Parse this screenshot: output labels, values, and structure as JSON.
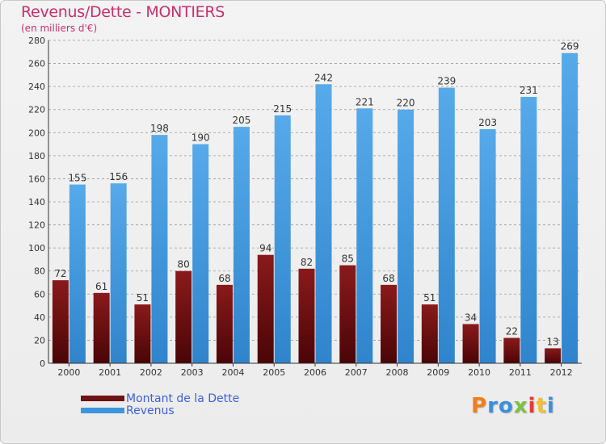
{
  "title": "Revenus/Dette - MONTIERS",
  "subtitle": "(en milliers d'€)",
  "logo": {
    "text": "Proxiti",
    "letters": [
      {
        "ch": "P",
        "color": "#f07f1a"
      },
      {
        "ch": "r",
        "color": "#3c8fdc"
      },
      {
        "ch": "o",
        "color": "#3c8fdc"
      },
      {
        "ch": "x",
        "color": "#7cc242"
      },
      {
        "ch": "i",
        "color": "#e23b3b"
      },
      {
        "ch": "t",
        "color": "#f2c12e"
      },
      {
        "ch": "i",
        "color": "#3c8fdc"
      }
    ]
  },
  "colors": {
    "dette": "#6e1213",
    "revenus": "#3d96dc",
    "axis": "#333333",
    "grid": "#9a9a9a"
  },
  "chart_data": {
    "type": "bar",
    "categories": [
      "2000",
      "2001",
      "2002",
      "2003",
      "2004",
      "2005",
      "2006",
      "2007",
      "2008",
      "2009",
      "2010",
      "2011",
      "2012"
    ],
    "series": [
      {
        "name": "Montant de la Dette",
        "values": [
          72,
          61,
          51,
          80,
          68,
          94,
          82,
          85,
          68,
          51,
          34,
          22,
          13
        ]
      },
      {
        "name": "Revenus",
        "values": [
          155,
          156,
          198,
          190,
          205,
          215,
          242,
          221,
          220,
          239,
          203,
          231,
          269
        ]
      }
    ],
    "title": "Revenus/Dette - MONTIERS",
    "ylabel": "(en milliers d'€)",
    "ylim": [
      0,
      280
    ],
    "yticks": [
      0,
      20,
      40,
      60,
      80,
      100,
      120,
      140,
      160,
      180,
      200,
      220,
      240,
      260,
      280
    ],
    "grid": "horizontal-dashed",
    "legend_position": "bottom-left",
    "data_labels": true
  }
}
